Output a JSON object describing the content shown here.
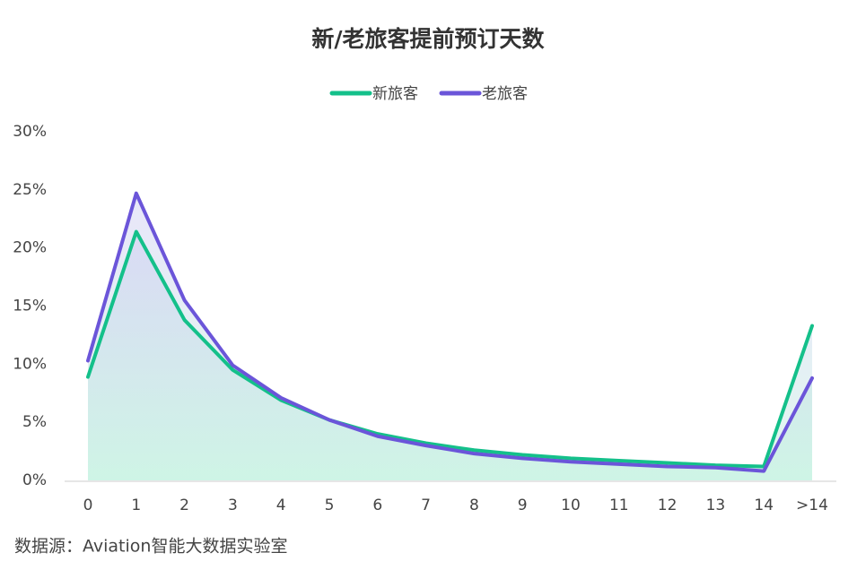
{
  "chart_data": {
    "type": "line",
    "title": "新/老旅客提前预订天数",
    "categories": [
      "0",
      "1",
      "2",
      "3",
      "4",
      "5",
      "6",
      "7",
      "8",
      "9",
      "10",
      "11",
      "12",
      "13",
      "14",
      ">14"
    ],
    "series": [
      {
        "name": "新旅客",
        "color": "#14c08a",
        "values": [
          8.9,
          21.4,
          13.8,
          9.5,
          6.9,
          5.2,
          4.0,
          3.2,
          2.6,
          2.2,
          1.9,
          1.7,
          1.5,
          1.3,
          1.2,
          13.3
        ]
      },
      {
        "name": "老旅客",
        "color": "#6b55d9",
        "values": [
          10.3,
          24.7,
          15.5,
          9.9,
          7.1,
          5.2,
          3.8,
          3.0,
          2.3,
          1.9,
          1.6,
          1.4,
          1.2,
          1.1,
          0.8,
          8.8
        ]
      }
    ],
    "ylim": [
      0,
      30
    ],
    "yticks": [
      {
        "value": 0,
        "label": "0%"
      },
      {
        "value": 5,
        "label": "5%"
      },
      {
        "value": 10,
        "label": "10%"
      },
      {
        "value": 15,
        "label": "15%"
      },
      {
        "value": 20,
        "label": "20%"
      },
      {
        "value": 25,
        "label": "25%"
      },
      {
        "value": 30,
        "label": "30%"
      }
    ],
    "grid": false,
    "legend": "top",
    "source": "数据源：Aviation智能大数据实验室"
  }
}
